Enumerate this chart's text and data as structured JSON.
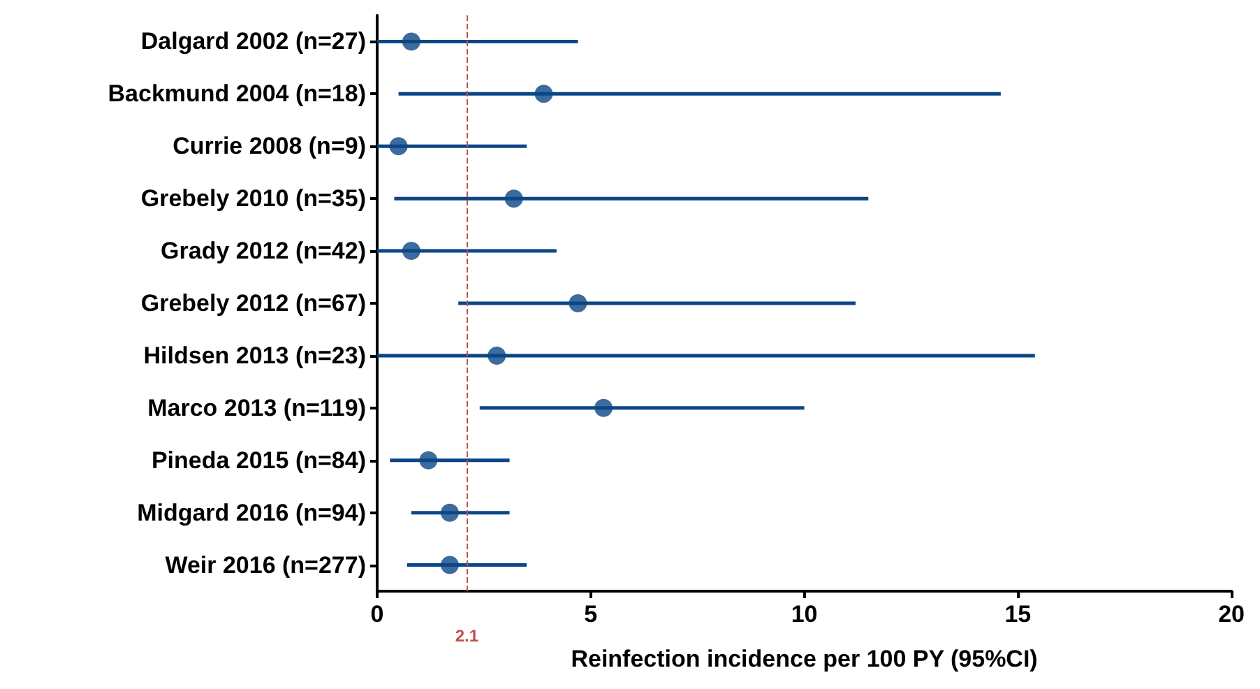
{
  "chart_data": {
    "type": "scatter",
    "orientation": "horizontal",
    "xlabel": "Reinfection incidence per 100 PY (95%CI)",
    "categories": [
      "Dalgard 2002 (n=27)",
      "Backmund 2004 (n=18)",
      "Currie 2008 (n=9)",
      "Grebely 2010 (n=35)",
      "Grady 2012 (n=42)",
      "Grebely 2012 (n=67)",
      "Hildsen 2013 (n=23)",
      "Marco 2013 (n=119)",
      "Pineda 2015 (n=84)",
      "Midgard 2016 (n=94)",
      "Weir 2016 (n=277)"
    ],
    "series": [
      {
        "color": "#0b4686",
        "values": [
          0.8,
          3.9,
          0.5,
          3.2,
          0.8,
          4.7,
          2.8,
          5.3,
          1.2,
          1.7,
          1.7
        ],
        "errors": [
          [
            0,
            4.7
          ],
          [
            0.5,
            14.6
          ],
          [
            0,
            3.5
          ],
          [
            0.4,
            11.5
          ],
          [
            0,
            4.2
          ],
          [
            1.9,
            11.2
          ],
          [
            0,
            15.4
          ],
          [
            2.4,
            10
          ],
          [
            0.3,
            3.1
          ],
          [
            0.8,
            3.1
          ],
          [
            0.7,
            3.5
          ]
        ]
      }
    ],
    "xlim": [
      0,
      20
    ],
    "xticks": [
      0,
      5,
      10,
      15,
      20
    ],
    "grid": false,
    "marker": "circle",
    "ref_lines": [
      {
        "axis": "x",
        "value": 2.1,
        "label": "2.1",
        "color": "#c0504d",
        "line_style": "dashed"
      }
    ]
  }
}
